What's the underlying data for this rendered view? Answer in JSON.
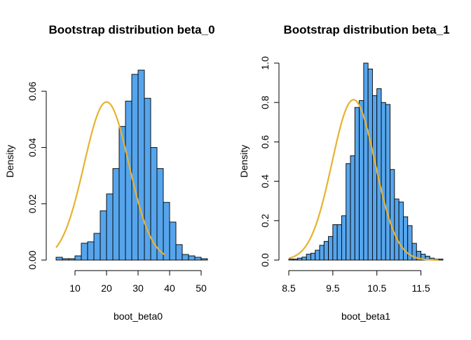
{
  "chart_data": [
    {
      "type": "histogram",
      "title": "Bootstrap distribution beta_0",
      "xlabel": "boot_beta0",
      "ylabel": "Density",
      "bar_color": "#56A5EC",
      "curve_color": "#E8B230",
      "xlim": [
        4,
        52
      ],
      "ylim": [
        0,
        0.07
      ],
      "x_ticks": [
        10,
        20,
        30,
        40,
        50
      ],
      "y_ticks": [
        0.0,
        0.02,
        0.04,
        0.06
      ],
      "y_tick_labels": [
        "0.00",
        "0.02",
        "0.04",
        "0.06"
      ],
      "bins": {
        "edges": [
          4,
          6,
          8,
          10,
          12,
          14,
          16,
          18,
          20,
          22,
          24,
          26,
          28,
          30,
          32,
          34,
          36,
          38,
          40,
          42,
          44,
          46,
          48,
          50,
          52
        ],
        "density": [
          0.001,
          0.0005,
          0.0005,
          0.0015,
          0.006,
          0.0065,
          0.0095,
          0.0175,
          0.0235,
          0.0325,
          0.0475,
          0.0565,
          0.066,
          0.0675,
          0.0575,
          0.04,
          0.0325,
          0.0205,
          0.0135,
          0.0055,
          0.002,
          0.0015,
          0.001,
          0.0005
        ]
      },
      "curve": {
        "type": "normal",
        "mean": 20.0,
        "sd": 7.1,
        "x_range": [
          4,
          38.5
        ]
      }
    },
    {
      "type": "histogram",
      "title": "Bootstrap distribution beta_1",
      "xlabel": "boot_beta1",
      "ylabel": "Density",
      "bar_color": "#56A5EC",
      "curve_color": "#E8B230",
      "xlim": [
        8.5,
        12.0
      ],
      "ylim": [
        0,
        1.0
      ],
      "x_ticks": [
        8.5,
        9.5,
        10.5,
        11.5
      ],
      "x_tick_labels": [
        "8.5",
        "9.5",
        "10.5",
        "11.5"
      ],
      "y_ticks": [
        0.0,
        0.2,
        0.4,
        0.6,
        0.8,
        1.0
      ],
      "y_tick_labels": [
        "0.0",
        "0.2",
        "0.4",
        "0.6",
        "0.8",
        "1.0"
      ],
      "bins": {
        "edges": [
          8.5,
          8.6,
          8.7,
          8.8,
          8.9,
          9.0,
          9.1,
          9.2,
          9.3,
          9.4,
          9.5,
          9.6,
          9.7,
          9.8,
          9.9,
          10.0,
          10.1,
          10.2,
          10.3,
          10.4,
          10.5,
          10.6,
          10.7,
          10.8,
          10.9,
          11.0,
          11.1,
          11.2,
          11.3,
          11.4,
          11.5,
          11.6,
          11.7,
          11.8,
          11.9,
          12.0
        ],
        "density": [
          0.005,
          0.005,
          0.01,
          0.015,
          0.03,
          0.035,
          0.05,
          0.075,
          0.095,
          0.12,
          0.18,
          0.18,
          0.225,
          0.49,
          0.53,
          0.775,
          0.81,
          1.0,
          0.97,
          0.835,
          0.87,
          0.8,
          0.79,
          0.46,
          0.31,
          0.295,
          0.22,
          0.175,
          0.085,
          0.045,
          0.03,
          0.02,
          0.01,
          0.005,
          0.005
        ]
      },
      "curve": {
        "type": "normal",
        "mean": 9.97,
        "sd": 0.49,
        "x_range": [
          8.5,
          11.9
        ]
      }
    }
  ]
}
